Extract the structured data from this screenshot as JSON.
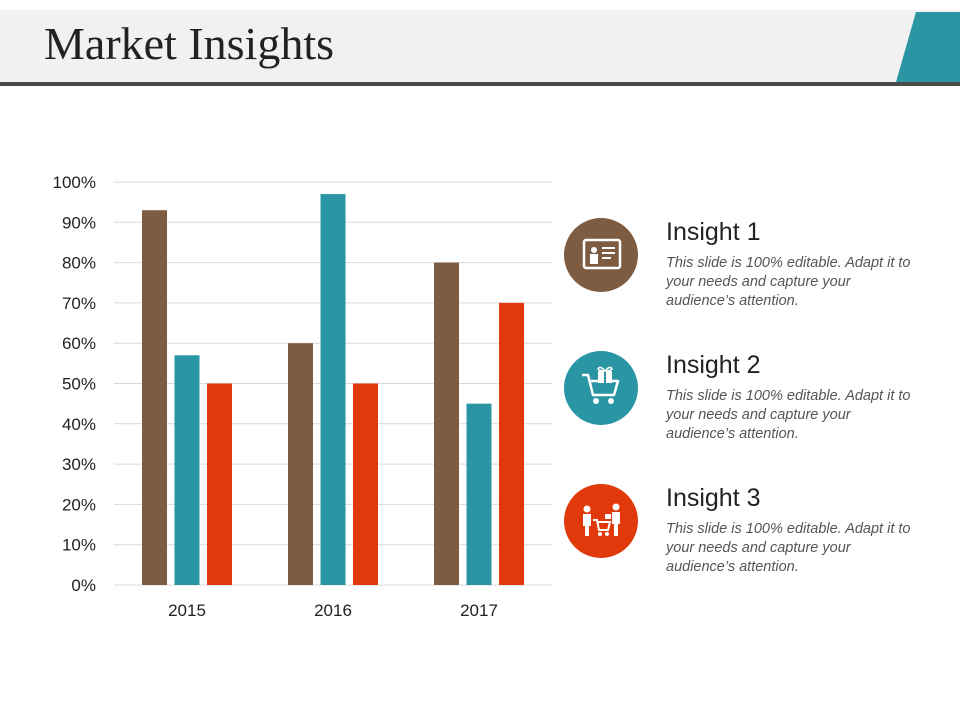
{
  "page": {
    "title": "Market Insights"
  },
  "colors": {
    "brown": "#7d5c42",
    "teal": "#2a95a3",
    "red": "#e03a0c",
    "header_accent": "#2a95a3"
  },
  "chart_data": {
    "type": "bar",
    "categories": [
      "2015",
      "2016",
      "2017"
    ],
    "series": [
      {
        "values": [
          93,
          60,
          80
        ],
        "color": "#7d5c42"
      },
      {
        "values": [
          57,
          97,
          45
        ],
        "color": "#2a95a3"
      },
      {
        "values": [
          50,
          50,
          70
        ],
        "color": "#e03a0c"
      }
    ],
    "ylim": [
      0,
      100
    ],
    "yticks": [
      0,
      10,
      20,
      30,
      40,
      50,
      60,
      70,
      80,
      90,
      100
    ],
    "ytick_labels": [
      "0%",
      "10%",
      "20%",
      "30%",
      "40%",
      "50%",
      "60%",
      "70%",
      "80%",
      "90%",
      "100%"
    ],
    "grid": true,
    "legend": "none"
  },
  "insights": [
    {
      "title": "Insight 1",
      "text": "This slide is 100% editable. Adapt it to your needs and capture your audience’s attention.",
      "color": "#7d5c42",
      "icon": "presentation-board-icon"
    },
    {
      "title": "Insight 2",
      "text": "This slide is 100% editable. Adapt it to your needs and capture your audience’s attention.",
      "color": "#2a95a3",
      "icon": "shopping-cart-gift-icon"
    },
    {
      "title": "Insight 3",
      "text": "This slide is 100% editable. Adapt it to your needs and capture your audience’s attention.",
      "color": "#e03a0c",
      "icon": "customer-with-cart-icon"
    }
  ]
}
